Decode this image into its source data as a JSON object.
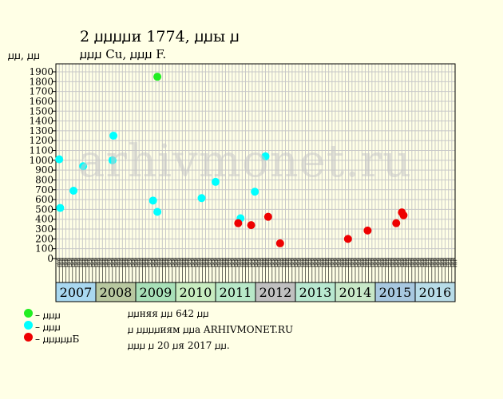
{
  "header": {
    "title": "2 ꙡꙡꙡꙡи 1774, ꙡꙡы ꙡ",
    "subtitle": "ꙡꙡꙡ Cu, ꙡꙡꙡ F."
  },
  "watermark": "arhivmonet.ru",
  "legend": [
    {
      "label": "– ꙡꙡꙡ",
      "color": "#22ee22"
    },
    {
      "label": "– ꙡꙡꙡ",
      "color": "#00ffff"
    },
    {
      "label": "– ꙡꙡꙡꙡꙡБ",
      "color": "#ee0000"
    }
  ],
  "notes": [
    "ꙡꙡняя ꙡꙡ 642 ꙡꙡ",
    "ꙡ ꙡꙡꙡꙡиям ꙡꙡа ARHIVMONET.RU",
    "ꙡꙡꙡ ꙡ 20 ꙡя 2017 ꙡꙡ."
  ],
  "colors": {
    "background": "#ffffe6",
    "plot_background": "#ffffe6",
    "grid": "#c8c8c8",
    "green": "#22ee22",
    "cyan": "#00ffff",
    "red": "#ee0000",
    "year_colors": [
      "#a9d8f0",
      "#b8c8a0",
      "#a8e0b8",
      "#c8ecc0",
      "#b8e8c8",
      "#c0c0c0",
      "#b8e8d0",
      "#c8e8c8",
      "#a8c8e0",
      "#b8dce8"
    ]
  },
  "chart_data": {
    "type": "scatter",
    "title": "2 ꙡꙡꙡꙡи 1774, ꙡꙡы ꙡ",
    "ylabel": "ꙡꙡ, ꙡꙡ",
    "ylim": [
      0,
      1900
    ],
    "yticks": [
      0,
      100,
      200,
      300,
      400,
      500,
      600,
      700,
      800,
      900,
      1000,
      1100,
      1200,
      1300,
      1400,
      1500,
      1600,
      1700,
      1800,
      1900
    ],
    "grid": true,
    "years": [
      "2007",
      "2008",
      "2009",
      "2010",
      "2011",
      "2012",
      "2013",
      "2014",
      "2015",
      "2016"
    ],
    "month_labels": [
      "ꙡꙡ",
      "ꙡꙡ",
      "ꙡꙡ",
      "ꙡꙡ",
      "ꙡꙡ",
      "ꙡꙡ",
      "ꙡꙡ",
      "ꙡꙡ",
      "ꙡꙡ",
      "ꙡꙡ",
      "ꙡꙡ",
      "ꙡꙡ"
    ],
    "x_unit": "months since start of 2007 (0–120)",
    "series": [
      {
        "name": "– ꙡꙡꙡ",
        "color": "#22ee22",
        "points": [
          {
            "x": 30.5,
            "y": 1850
          }
        ]
      },
      {
        "name": "– ꙡꙡꙡ",
        "color": "#00ffff",
        "points": [
          {
            "x": 1.0,
            "y": 1010
          },
          {
            "x": 1.3,
            "y": 515
          },
          {
            "x": 5.3,
            "y": 690
          },
          {
            "x": 8.2,
            "y": 940
          },
          {
            "x": 17.3,
            "y": 1250
          },
          {
            "x": 17.0,
            "y": 1000
          },
          {
            "x": 29.2,
            "y": 590
          },
          {
            "x": 30.5,
            "y": 475
          },
          {
            "x": 43.8,
            "y": 615
          },
          {
            "x": 48.0,
            "y": 780
          },
          {
            "x": 55.5,
            "y": 410
          },
          {
            "x": 59.8,
            "y": 680
          },
          {
            "x": 63.0,
            "y": 1040
          }
        ]
      },
      {
        "name": "– ꙡꙡꙡꙡꙡБ",
        "color": "#ee0000",
        "points": [
          {
            "x": 54.8,
            "y": 360
          },
          {
            "x": 58.7,
            "y": 340
          },
          {
            "x": 63.8,
            "y": 425
          },
          {
            "x": 67.4,
            "y": 155
          },
          {
            "x": 87.8,
            "y": 200
          },
          {
            "x": 93.7,
            "y": 285
          },
          {
            "x": 102.3,
            "y": 360
          },
          {
            "x": 104.0,
            "y": 470
          },
          {
            "x": 104.5,
            "y": 440
          }
        ]
      }
    ]
  }
}
